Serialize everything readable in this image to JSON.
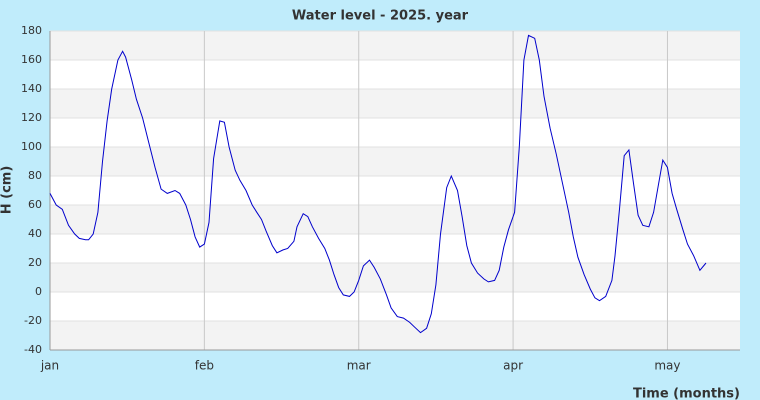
{
  "chart_data": {
    "type": "line",
    "title": "Water level - 2025. year",
    "xlabel": "Time (months)",
    "ylabel": "H (cm)",
    "xlim": [
      0,
      4.47
    ],
    "ylim": [
      -40,
      180
    ],
    "xticks": [
      {
        "value": 0,
        "label": "jan"
      },
      {
        "value": 1,
        "label": "feb"
      },
      {
        "value": 2,
        "label": "mar"
      },
      {
        "value": 3,
        "label": "apr"
      },
      {
        "value": 4,
        "label": "may"
      }
    ],
    "yticks": [
      -40,
      -20,
      0,
      20,
      40,
      60,
      80,
      100,
      120,
      140,
      160,
      180
    ],
    "grid": true,
    "series": [
      {
        "name": "H",
        "color": "#0000cc",
        "x": [
          0,
          0.04,
          0.08,
          0.12,
          0.16,
          0.19,
          0.23,
          0.25,
          0.28,
          0.31,
          0.34,
          0.37,
          0.4,
          0.44,
          0.47,
          0.49,
          0.53,
          0.56,
          0.6,
          0.64,
          0.68,
          0.72,
          0.76,
          0.81,
          0.84,
          0.88,
          0.91,
          0.94,
          0.97,
          1.0,
          1.03,
          1.06,
          1.1,
          1.13,
          1.16,
          1.2,
          1.23,
          1.27,
          1.31,
          1.34,
          1.37,
          1.4,
          1.44,
          1.47,
          1.51,
          1.54,
          1.58,
          1.6,
          1.64,
          1.67,
          1.7,
          1.74,
          1.78,
          1.81,
          1.84,
          1.87,
          1.9,
          1.94,
          1.97,
          2.0,
          2.03,
          2.07,
          2.1,
          2.14,
          2.18,
          2.21,
          2.25,
          2.29,
          2.33,
          2.36,
          2.4,
          2.44,
          2.47,
          2.5,
          2.53,
          2.57,
          2.6,
          2.64,
          2.67,
          2.7,
          2.73,
          2.77,
          2.81,
          2.84,
          2.88,
          2.91,
          2.94,
          2.97,
          3.01,
          3.04,
          3.07,
          3.1,
          3.14,
          3.17,
          3.2,
          3.24,
          3.28,
          3.32,
          3.36,
          3.39,
          3.42,
          3.46,
          3.5,
          3.53,
          3.56,
          3.6,
          3.64,
          3.66,
          3.69,
          3.72,
          3.75,
          3.78,
          3.81,
          3.84,
          3.88,
          3.91,
          3.94,
          3.97,
          4.0,
          4.03,
          4.06,
          4.1,
          4.13,
          4.17,
          4.21,
          4.25
        ],
        "values": [
          68,
          60,
          57,
          46,
          40,
          37,
          36,
          36,
          40,
          55,
          90,
          118,
          140,
          160,
          166,
          162,
          146,
          133,
          120,
          103,
          86,
          71,
          68,
          70,
          68,
          60,
          50,
          38,
          31,
          33,
          48,
          92,
          118,
          117,
          100,
          84,
          77,
          70,
          60,
          55,
          50,
          42,
          32,
          27,
          29,
          30,
          35,
          45,
          54,
          52,
          45,
          37,
          30,
          22,
          12,
          3,
          -2,
          -3,
          0,
          8,
          18,
          22,
          17,
          9,
          -2,
          -11,
          -17,
          -18,
          -21,
          -24,
          -28,
          -25,
          -15,
          5,
          40,
          72,
          80,
          70,
          52,
          32,
          20,
          13,
          9,
          7,
          8,
          15,
          31,
          43,
          55,
          100,
          160,
          177,
          175,
          160,
          135,
          113,
          95,
          75,
          55,
          38,
          24,
          12,
          2,
          -4,
          -6,
          -3,
          8,
          25,
          58,
          94,
          98,
          75,
          53,
          46,
          45,
          55,
          73,
          91,
          86,
          68,
          57,
          43,
          33,
          25,
          15,
          20
        ]
      }
    ]
  }
}
